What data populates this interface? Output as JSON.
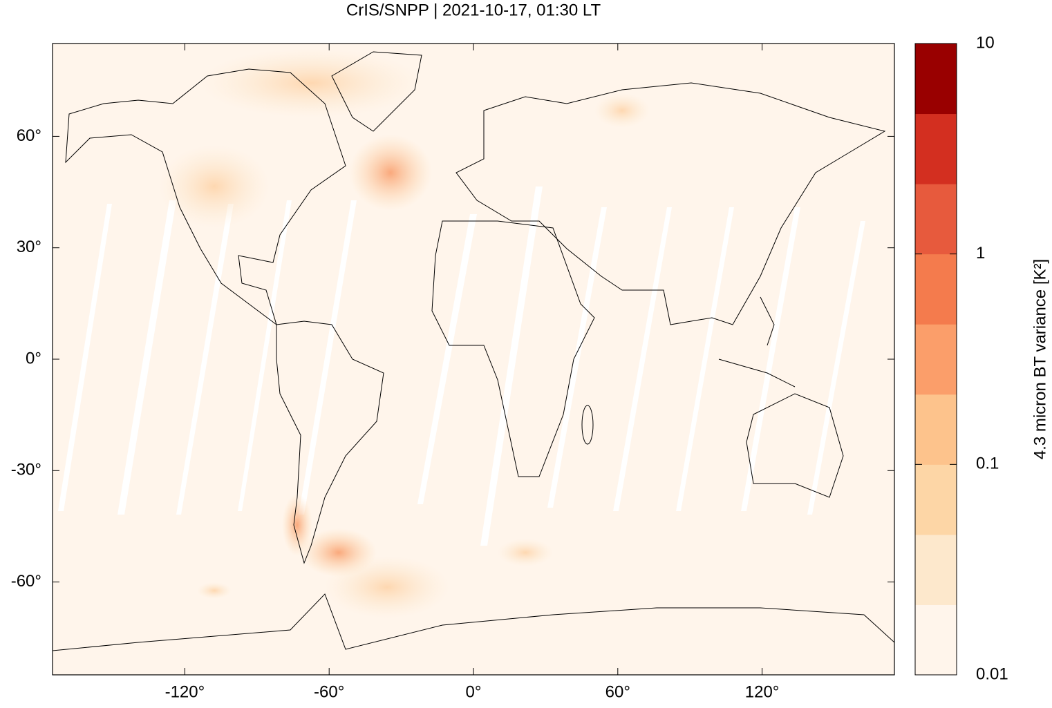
{
  "chart_data": {
    "type": "map",
    "title": "CrIS/SNPP | 2021-10-17, 01:30 LT",
    "xlim": [
      -175,
      175
    ],
    "ylim": [
      -85,
      85
    ],
    "xticks": [
      {
        "value": -120,
        "label": "-120°"
      },
      {
        "value": -60,
        "label": "-60°"
      },
      {
        "value": 0,
        "label": "0°"
      },
      {
        "value": 60,
        "label": "60°"
      },
      {
        "value": 120,
        "label": "120°"
      }
    ],
    "yticks": [
      {
        "value": 60,
        "label": "60°"
      },
      {
        "value": 30,
        "label": "30°"
      },
      {
        "value": 0,
        "label": "0°"
      },
      {
        "value": -30,
        "label": "-30°"
      },
      {
        "value": -60,
        "label": "-60°"
      }
    ],
    "colorbar": {
      "label": "4.3 micron BT variance [K²]",
      "log_scale": true,
      "clim": [
        0.01,
        10
      ],
      "ticks": [
        0.01,
        0.1,
        1,
        10
      ],
      "colors": [
        "#fff5eb",
        "#fde8cc",
        "#fdd6a6",
        "#fdc38c",
        "#fb9e6a",
        "#f47b4d",
        "#e75a3d",
        "#d32f20",
        "#990000"
      ]
    }
  }
}
